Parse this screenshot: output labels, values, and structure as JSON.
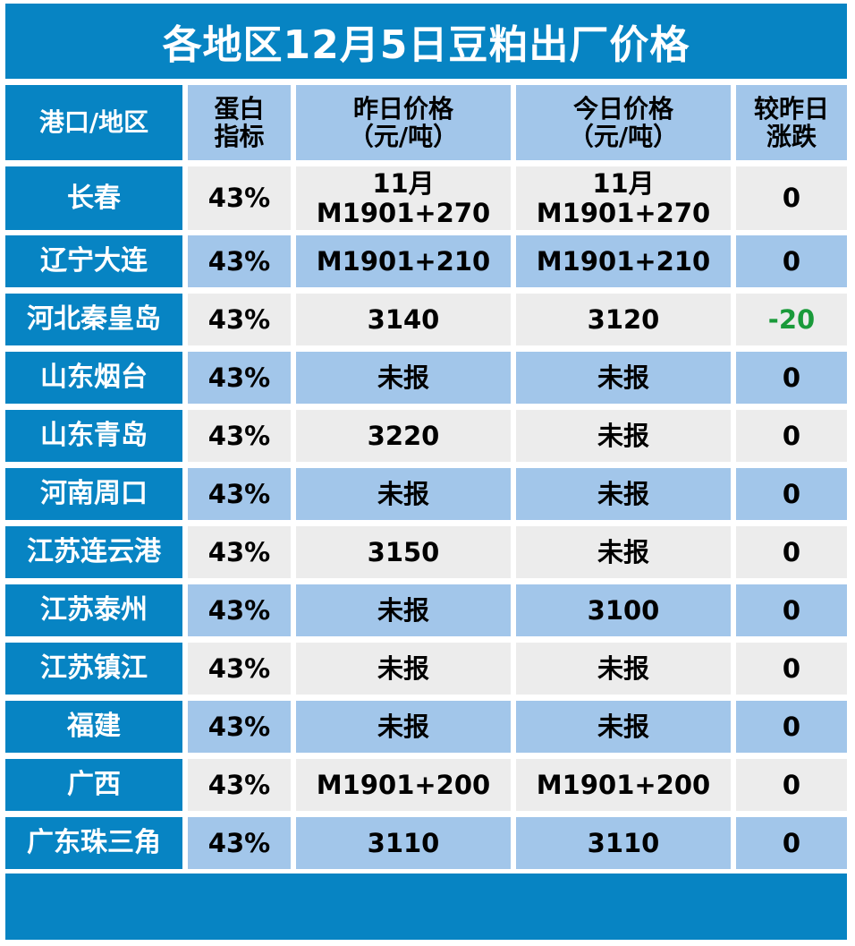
{
  "title": "各地区12月5日豆粕出厂价格",
  "colors": {
    "accent": "#0784c3",
    "row_blue": "#a2c6ea",
    "row_light": "#ececec",
    "decline": "#1a9a3a"
  },
  "headers": {
    "region": "港口/地区",
    "protein": [
      "蛋白",
      "指标"
    ],
    "yesterday": [
      "昨日价格",
      "（元/吨）"
    ],
    "today": [
      "今日价格",
      "（元/吨）"
    ],
    "change": [
      "较昨日",
      "涨跌"
    ]
  },
  "rows": [
    {
      "region": "长春",
      "protein": "43%",
      "yesterday": [
        "11月",
        "M1901+270"
      ],
      "today": [
        "11月",
        "M1901+270"
      ],
      "change": "0"
    },
    {
      "region": "辽宁大连",
      "protein": "43%",
      "yesterday": [
        "M1901+210"
      ],
      "today": [
        "M1901+210"
      ],
      "change": "0"
    },
    {
      "region": "河北秦皇岛",
      "protein": "43%",
      "yesterday": [
        "3140"
      ],
      "today": [
        "3120"
      ],
      "change": "-20"
    },
    {
      "region": "山东烟台",
      "protein": "43%",
      "yesterday": [
        "未报"
      ],
      "today": [
        "未报"
      ],
      "change": "0"
    },
    {
      "region": "山东青岛",
      "protein": "43%",
      "yesterday": [
        "3220"
      ],
      "today": [
        "未报"
      ],
      "change": "0"
    },
    {
      "region": "河南周口",
      "protein": "43%",
      "yesterday": [
        "未报"
      ],
      "today": [
        "未报"
      ],
      "change": "0"
    },
    {
      "region": "江苏连云港",
      "protein": "43%",
      "yesterday": [
        "3150"
      ],
      "today": [
        "未报"
      ],
      "change": "0"
    },
    {
      "region": "江苏泰州",
      "protein": "43%",
      "yesterday": [
        "未报"
      ],
      "today": [
        "3100"
      ],
      "change": "0"
    },
    {
      "region": "江苏镇江",
      "protein": "43%",
      "yesterday": [
        "未报"
      ],
      "today": [
        "未报"
      ],
      "change": "0"
    },
    {
      "region": "福建",
      "protein": "43%",
      "yesterday": [
        "未报"
      ],
      "today": [
        "未报"
      ],
      "change": "0"
    },
    {
      "region": "广西",
      "protein": "43%",
      "yesterday": [
        "M1901+200"
      ],
      "today": [
        "M1901+200"
      ],
      "change": "0"
    },
    {
      "region": "广东珠三角",
      "protein": "43%",
      "yesterday": [
        "3110"
      ],
      "today": [
        "3110"
      ],
      "change": "0"
    }
  ]
}
